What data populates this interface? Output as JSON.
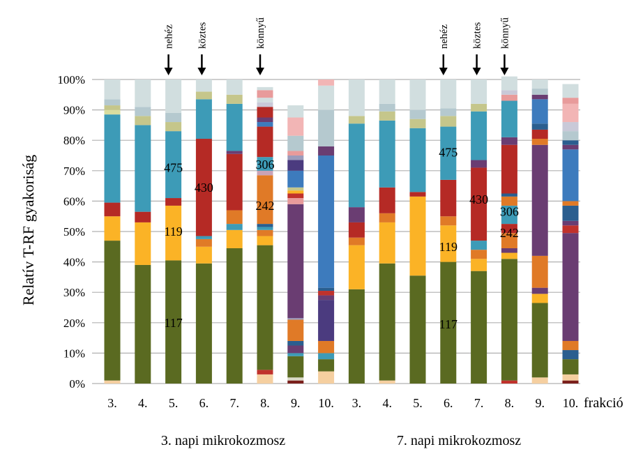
{
  "chart_data": {
    "type": "bar",
    "stacked": true,
    "ylabel": "Relatív T-RF gyakoriság",
    "ylim": [
      0,
      100
    ],
    "yticks": [
      "0%",
      "10%",
      "20%",
      "30%",
      "40%",
      "50%",
      "60%",
      "70%",
      "80%",
      "90%",
      "100%"
    ],
    "x_suffix_label": "frakció",
    "grid": true,
    "groups": [
      {
        "label": "3. napi mikrokozmosz",
        "categories": [
          "3.",
          "4.",
          "5.",
          "6.",
          "7.",
          "8.",
          "9.",
          "10."
        ]
      },
      {
        "label": "7. napi mikrokozmosz",
        "categories": [
          "3.",
          "4.",
          "5.",
          "6.",
          "7.",
          "8.",
          "9.",
          "10."
        ]
      }
    ],
    "bars": [
      [
        [
          "#f5cfa0",
          1
        ],
        [
          "#5a6a21",
          46
        ],
        [
          "#fbb326",
          8
        ],
        [
          "#b52a25",
          4.5
        ],
        [
          "#3d9bb7",
          29
        ],
        [
          "#d9dd9f",
          1.5
        ],
        [
          "#c5c68b",
          1.5
        ],
        [
          "#b5c9cf",
          2
        ],
        [
          "#d1dedf",
          6.5
        ]
      ],
      [
        [
          "#5a6a21",
          39
        ],
        [
          "#fbb326",
          14
        ],
        [
          "#b52a25",
          3.5
        ],
        [
          "#3d9bb7",
          28.5
        ],
        [
          "#c5c68b",
          3
        ],
        [
          "#b5c9cf",
          3
        ],
        [
          "#d1dedf",
          9
        ]
      ],
      [
        [
          "#5a6a21",
          40.5
        ],
        [
          "#fbb326",
          18
        ],
        [
          "#b52a25",
          2.5
        ],
        [
          "#3d9bb7",
          22
        ],
        [
          "#c5c68b",
          3
        ],
        [
          "#b5c9cf",
          3
        ],
        [
          "#d1dedf",
          11
        ]
      ],
      [
        [
          "#5a6a21",
          39.5
        ],
        [
          "#fbb326",
          5.5
        ],
        [
          "#e07a27",
          2.5
        ],
        [
          "#3d9bb7",
          1
        ],
        [
          "#b52a25",
          32
        ],
        [
          "#3d9bb7",
          13
        ],
        [
          "#c5c68b",
          2.5
        ],
        [
          "#d1dedf",
          4
        ]
      ],
      [
        [
          "#5a6a21",
          44.5
        ],
        [
          "#fbb326",
          6
        ],
        [
          "#3d9bb7",
          2
        ],
        [
          "#e07a27",
          4.5
        ],
        [
          "#b52a25",
          18.5
        ],
        [
          "#6a3d72",
          1
        ],
        [
          "#3d9bb7",
          15.5
        ],
        [
          "#c5c68b",
          3
        ],
        [
          "#d1dedf",
          5
        ]
      ],
      [
        [
          "#f5cfa0",
          3
        ],
        [
          "#c0322c",
          1.5
        ],
        [
          "#5a6a21",
          41
        ],
        [
          "#fbb326",
          3
        ],
        [
          "#e07a27",
          2
        ],
        [
          "#3d9bb7",
          1
        ],
        [
          "#2b5e8f",
          1
        ],
        [
          "#e07a27",
          16
        ],
        [
          "#c9a3b8",
          1.5
        ],
        [
          "#3d9bb7",
          4.5
        ],
        [
          "#b52a25",
          10
        ],
        [
          "#3d7bbd",
          1.5
        ],
        [
          "#6a3d72",
          1.5
        ],
        [
          "#b52a25",
          3.5
        ],
        [
          "#c9c9d8",
          1.5
        ],
        [
          "#d1dedf",
          1.5
        ],
        [
          "#e89b9b",
          2.5
        ],
        [
          "#d1dedf",
          1
        ]
      ],
      [
        [
          "#7a1f1c",
          1
        ],
        [
          "#d9d9c6",
          1
        ],
        [
          "#5a6a21",
          7
        ],
        [
          "#3d9bb7",
          1
        ],
        [
          "#6a3d72",
          2.5
        ],
        [
          "#2b5e8f",
          1.5
        ],
        [
          "#e07a27",
          7
        ],
        [
          "#9b9bbb",
          0.5
        ],
        [
          "#6a3d72",
          37.5
        ],
        [
          "#e89b9b",
          2
        ],
        [
          "#c0322c",
          1.5
        ],
        [
          "#fbb326",
          1
        ],
        [
          "#c5c68b",
          1
        ],
        [
          "#3d7bbd",
          5.5
        ],
        [
          "#4b3b7f",
          3.5
        ],
        [
          "#9b9bbb",
          1.5
        ],
        [
          "#e89b9b",
          1.5
        ],
        [
          "#b5c9cf",
          5
        ],
        [
          "#f2b5b5",
          6
        ],
        [
          "#d1dedf",
          4
        ]
      ],
      [
        [
          "#f5cfa0",
          4
        ],
        [
          "#5a6a21",
          4
        ],
        [
          "#3d9bb7",
          2
        ],
        [
          "#e07a27",
          4
        ],
        [
          "#4b3b7f",
          13.5
        ],
        [
          "#6a3d72",
          1.5
        ],
        [
          "#c0322c",
          1.5
        ],
        [
          "#2b5e8f",
          1
        ],
        [
          "#3d7bbd",
          43.5
        ],
        [
          "#6a3d72",
          3
        ],
        [
          "#b5c9cf",
          12
        ],
        [
          "#d1dedf",
          8
        ],
        [
          "#f2b5b5",
          2
        ]
      ],
      [
        [
          "#5a6a21",
          31
        ],
        [
          "#fbb326",
          14.5
        ],
        [
          "#e07a27",
          2.5
        ],
        [
          "#b52a25",
          5
        ],
        [
          "#6a3d72",
          5
        ],
        [
          "#3d9bb7",
          27.5
        ],
        [
          "#c5c68b",
          2.5
        ],
        [
          "#d1dedf",
          12
        ]
      ],
      [
        [
          "#f5cfa0",
          1
        ],
        [
          "#5a6a21",
          38.5
        ],
        [
          "#fbb326",
          13.5
        ],
        [
          "#e07a27",
          3
        ],
        [
          "#b52a25",
          8.5
        ],
        [
          "#3d9bb7",
          22
        ],
        [
          "#c5c68b",
          3
        ],
        [
          "#b5c9cf",
          2.5
        ],
        [
          "#d1dedf",
          8
        ]
      ],
      [
        [
          "#5a6a21",
          35.5
        ],
        [
          "#fbb326",
          26
        ],
        [
          "#b52a25",
          1.5
        ],
        [
          "#3d9bb7",
          21
        ],
        [
          "#c5c68b",
          3
        ],
        [
          "#b5c9cf",
          3
        ],
        [
          "#d1dedf",
          10
        ]
      ],
      [
        [
          "#5a6a21",
          40
        ],
        [
          "#fbb326",
          12
        ],
        [
          "#e07a27",
          3
        ],
        [
          "#b52a25",
          12
        ],
        [
          "#3d9bb7",
          17.5
        ],
        [
          "#c5c68b",
          3.5
        ],
        [
          "#b5c9cf",
          2.5
        ],
        [
          "#d1dedf",
          9.5
        ]
      ],
      [
        [
          "#5a6a21",
          37
        ],
        [
          "#fbb326",
          4
        ],
        [
          "#e07a27",
          3
        ],
        [
          "#3d9bb7",
          3
        ],
        [
          "#b52a25",
          24
        ],
        [
          "#6a3d72",
          2.5
        ],
        [
          "#3d9bb7",
          16
        ],
        [
          "#c5c68b",
          2.5
        ],
        [
          "#d1dedf",
          8
        ]
      ],
      [
        [
          "#c0322c",
          1
        ],
        [
          "#5a6a21",
          40
        ],
        [
          "#fbb326",
          2
        ],
        [
          "#6a3d72",
          1.5
        ],
        [
          "#e07a27",
          5
        ],
        [
          "#b52a25",
          3
        ],
        [
          "#3d9bb7",
          6
        ],
        [
          "#e07a27",
          3
        ],
        [
          "#2b5e8f",
          1
        ],
        [
          "#b52a25",
          16
        ],
        [
          "#6a3d72",
          2.5
        ],
        [
          "#3d9bb7",
          12
        ],
        [
          "#e89b9b",
          2
        ],
        [
          "#c9c9d8",
          1.5
        ],
        [
          "#d1dedf",
          4.5
        ]
      ],
      [
        [
          "#f5cfa0",
          2
        ],
        [
          "#5a6a21",
          24.5
        ],
        [
          "#fbb326",
          3
        ],
        [
          "#6a3d72",
          2
        ],
        [
          "#e07a27",
          10.5
        ],
        [
          "#6a3d72",
          36.5
        ],
        [
          "#e07a27",
          2
        ],
        [
          "#b52a25",
          3
        ],
        [
          "#2b5e8f",
          2
        ],
        [
          "#3d7bbd",
          8
        ],
        [
          "#6a3d72",
          1.5
        ],
        [
          "#b5c9cf",
          2
        ],
        [
          "#d1dedf",
          3
        ]
      ],
      [
        [
          "#7a1f1c",
          1
        ],
        [
          "#f5cfa0",
          2
        ],
        [
          "#5a6a21",
          5
        ],
        [
          "#2b5e8f",
          3
        ],
        [
          "#e07a27",
          3
        ],
        [
          "#6a3d72",
          35.5
        ],
        [
          "#c0322c",
          2.5
        ],
        [
          "#6a3d72",
          1.5
        ],
        [
          "#2b5e8f",
          5
        ],
        [
          "#e07a27",
          1.5
        ],
        [
          "#3d7bbd",
          17
        ],
        [
          "#6a3d72",
          1.5
        ],
        [
          "#2b5e8f",
          1.5
        ],
        [
          "#b5c9cf",
          3
        ],
        [
          "#c9c9d8",
          3
        ],
        [
          "#f2b5b5",
          6
        ],
        [
          "#e89b9b",
          2
        ],
        [
          "#d1dedf",
          4.5
        ]
      ]
    ],
    "bar_annotations": [
      {
        "bar": 2,
        "y": 20,
        "text": "117"
      },
      {
        "bar": 2,
        "y": 50,
        "text": "119"
      },
      {
        "bar": 2,
        "y": 71,
        "text": "475"
      },
      {
        "bar": 3,
        "y": 64.5,
        "text": "430"
      },
      {
        "bar": 5,
        "y": 72,
        "text": "306"
      },
      {
        "bar": 5,
        "y": 58.5,
        "text": "242"
      },
      {
        "bar": 11,
        "y": 19.5,
        "text": "117"
      },
      {
        "bar": 11,
        "y": 45,
        "text": "119"
      },
      {
        "bar": 11,
        "y": 76,
        "text": "475"
      },
      {
        "bar": 12,
        "y": 60.5,
        "text": "430"
      },
      {
        "bar": 13,
        "y": 56.5,
        "text": "306"
      },
      {
        "bar": 13,
        "y": 49.5,
        "text": "242"
      }
    ],
    "arrows": [
      {
        "bar": 2,
        "text": "nehéz"
      },
      {
        "bar": 3,
        "text": "köztes"
      },
      {
        "bar": 5,
        "text": "könnyű"
      },
      {
        "bar": 11,
        "text": "nehéz"
      },
      {
        "bar": 12,
        "text": "köztes"
      },
      {
        "bar": 13,
        "text": "könnyű"
      }
    ]
  }
}
